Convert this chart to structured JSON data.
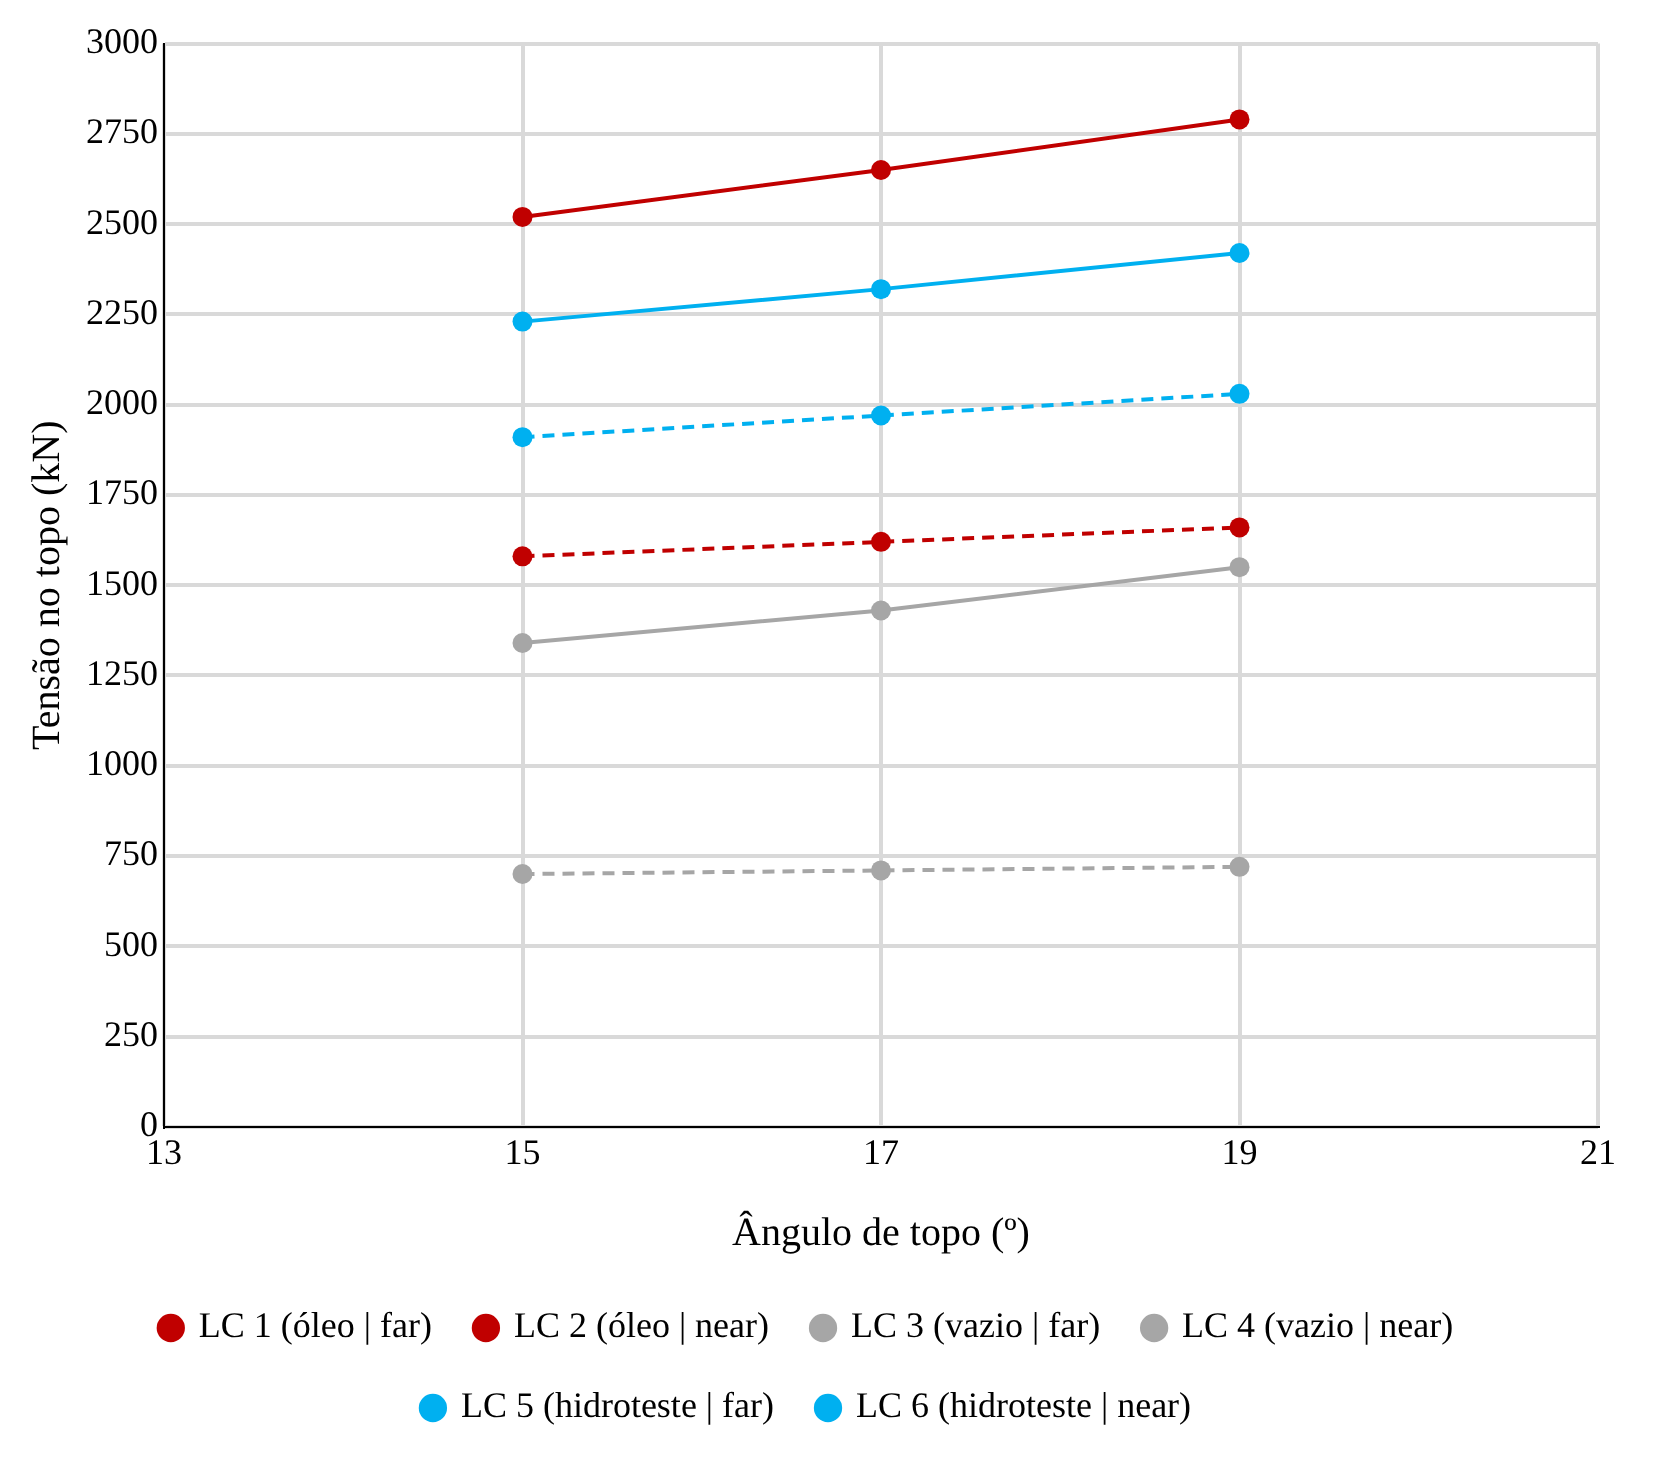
{
  "chart_data": {
    "type": "line",
    "xlabel": "Ângulo de topo (º)",
    "ylabel": "Tensão no topo (kN)",
    "x": [
      15,
      17,
      19
    ],
    "xlim": [
      13,
      21
    ],
    "xticks": [
      13,
      15,
      17,
      19,
      21
    ],
    "ylim": [
      0,
      3000
    ],
    "yticks": [
      0,
      250,
      500,
      750,
      1000,
      1250,
      1500,
      1750,
      2000,
      2250,
      2500,
      2750,
      3000
    ],
    "grid": true,
    "legend": "bottom",
    "marker": "circle",
    "series": [
      {
        "name": "LC 1 (óleo | far)",
        "color": "#c00000",
        "line_style": "solid",
        "values": [
          2520,
          2650,
          2790
        ]
      },
      {
        "name": "LC 2 (óleo | near)",
        "color": "#c00000",
        "line_style": "dashed",
        "values": [
          1580,
          1620,
          1660
        ]
      },
      {
        "name": "LC 3 (vazio | far)",
        "color": "#a6a6a6",
        "line_style": "solid",
        "values": [
          1340,
          1430,
          1550
        ]
      },
      {
        "name": "LC 4 (vazio | near)",
        "color": "#a6a6a6",
        "line_style": "dashed",
        "values": [
          700,
          710,
          720
        ]
      },
      {
        "name": "LC 5 (hidroteste | far)",
        "color": "#00b0f0",
        "line_style": "solid",
        "values": [
          2230,
          2320,
          2420
        ]
      },
      {
        "name": "LC 6 (hidroteste | near)",
        "color": "#00b0f0",
        "line_style": "dashed",
        "values": [
          1910,
          1970,
          2030
        ]
      }
    ]
  }
}
